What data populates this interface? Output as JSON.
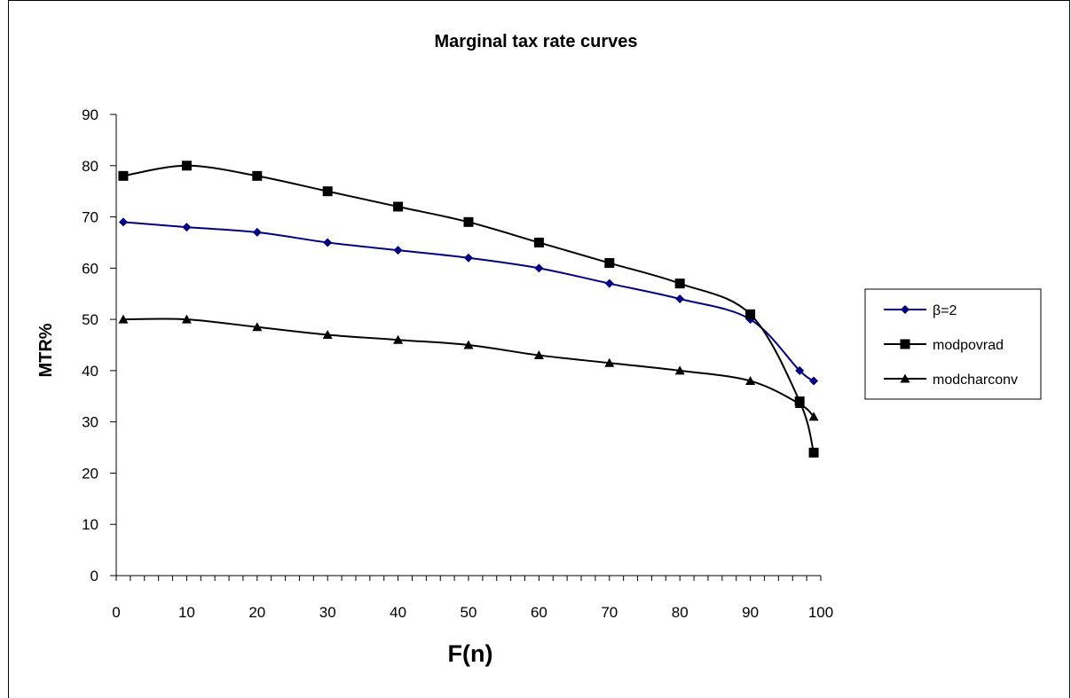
{
  "chart_data": {
    "type": "line",
    "title": "Marginal tax rate curves",
    "xlabel": "F(n)",
    "ylabel": "MTR%",
    "xlim": [
      0,
      100
    ],
    "ylim": [
      0,
      90
    ],
    "xticks": [
      0,
      10,
      20,
      30,
      40,
      50,
      60,
      70,
      80,
      90,
      100
    ],
    "yticks": [
      0,
      10,
      20,
      30,
      40,
      50,
      60,
      70,
      80,
      90
    ],
    "grid": false,
    "legend_position": "right",
    "series": [
      {
        "name": "β=2",
        "color": "#000080",
        "marker": "diamond",
        "x": [
          1,
          10,
          20,
          30,
          40,
          50,
          60,
          70,
          80,
          90,
          97,
          99
        ],
        "y": [
          69,
          68,
          67,
          65,
          63.5,
          62,
          60,
          57,
          54,
          50,
          40,
          38
        ]
      },
      {
        "name": "modpovrad",
        "color": "#000000",
        "marker": "square",
        "x": [
          1,
          10,
          20,
          30,
          40,
          50,
          60,
          70,
          80,
          90,
          97,
          99
        ],
        "y": [
          78,
          80,
          78,
          75,
          72,
          69,
          65,
          61,
          57,
          51,
          34,
          24
        ]
      },
      {
        "name": "modcharconv",
        "color": "#000000",
        "marker": "triangle",
        "x": [
          1,
          10,
          20,
          30,
          40,
          50,
          60,
          70,
          80,
          90,
          97,
          99
        ],
        "y": [
          50,
          50,
          48.5,
          47,
          46,
          45,
          43,
          41.5,
          40,
          38,
          33.5,
          31
        ]
      }
    ]
  }
}
